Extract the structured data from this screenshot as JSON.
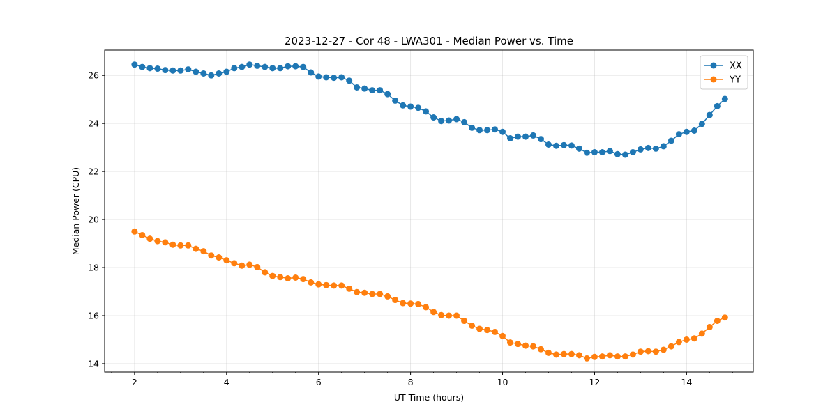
{
  "chart_data": {
    "type": "line",
    "title": "2023-12-27 - Cor 48 - LWA301 - Median Power vs. Time",
    "xlabel": "UT Time (hours)",
    "ylabel": "Median Power (CPU)",
    "xlim": [
      1.35,
      15.45
    ],
    "ylim": [
      13.65,
      27.05
    ],
    "xticks": [
      2,
      4,
      6,
      8,
      10,
      12,
      14
    ],
    "yticks": [
      14,
      16,
      18,
      20,
      22,
      24,
      26
    ],
    "grid": true,
    "legend_position": "top-right",
    "x": [
      2.0,
      2.1667,
      2.3333,
      2.5,
      2.6667,
      2.8333,
      3.0,
      3.1667,
      3.3333,
      3.5,
      3.6667,
      3.8333,
      4.0,
      4.1667,
      4.3333,
      4.5,
      4.6667,
      4.8333,
      5.0,
      5.1667,
      5.3333,
      5.5,
      5.6667,
      5.8333,
      6.0,
      6.1667,
      6.3333,
      6.5,
      6.6667,
      6.8333,
      7.0,
      7.1667,
      7.3333,
      7.5,
      7.6667,
      7.8333,
      8.0,
      8.1667,
      8.3333,
      8.5,
      8.6667,
      8.8333,
      9.0,
      9.1667,
      9.3333,
      9.5,
      9.6667,
      9.8333,
      10.0,
      10.1667,
      10.3333,
      10.5,
      10.6667,
      10.8333,
      11.0,
      11.1667,
      11.3333,
      11.5,
      11.6667,
      11.8333,
      12.0,
      12.1667,
      12.3333,
      12.5,
      12.6667,
      12.8333,
      13.0,
      13.1667,
      13.3333,
      13.5,
      13.6667,
      13.8333,
      14.0,
      14.1667,
      14.3333,
      14.5,
      14.6667,
      14.8333
    ],
    "series": [
      {
        "name": "XX",
        "color": "#1f77b4",
        "values": [
          26.45,
          26.35,
          26.3,
          26.28,
          26.22,
          26.2,
          26.2,
          26.25,
          26.15,
          26.08,
          26.0,
          26.08,
          26.15,
          26.3,
          26.35,
          26.45,
          26.4,
          26.35,
          26.3,
          26.3,
          26.38,
          26.38,
          26.35,
          26.12,
          25.95,
          25.92,
          25.9,
          25.92,
          25.78,
          25.5,
          25.45,
          25.38,
          25.38,
          25.22,
          24.95,
          24.75,
          24.7,
          24.65,
          24.5,
          24.25,
          24.1,
          24.12,
          24.18,
          24.05,
          23.82,
          23.72,
          23.72,
          23.75,
          23.65,
          23.38,
          23.45,
          23.45,
          23.5,
          23.35,
          23.12,
          23.07,
          23.1,
          23.08,
          22.95,
          22.78,
          22.8,
          22.8,
          22.85,
          22.72,
          22.7,
          22.8,
          22.92,
          22.98,
          22.95,
          23.05,
          23.28,
          23.55,
          23.65,
          23.7,
          23.98,
          24.35,
          24.72,
          25.02
        ]
      },
      {
        "name": "YY",
        "color": "#ff7f0e",
        "values": [
          19.5,
          19.35,
          19.2,
          19.1,
          19.05,
          18.95,
          18.92,
          18.92,
          18.78,
          18.68,
          18.5,
          18.42,
          18.3,
          18.18,
          18.08,
          18.12,
          18.02,
          17.8,
          17.65,
          17.6,
          17.55,
          17.58,
          17.52,
          17.38,
          17.3,
          17.27,
          17.25,
          17.25,
          17.12,
          16.98,
          16.95,
          16.9,
          16.9,
          16.8,
          16.65,
          16.52,
          16.5,
          16.48,
          16.35,
          16.15,
          16.02,
          16.0,
          16.0,
          15.78,
          15.58,
          15.45,
          15.4,
          15.32,
          15.15,
          14.88,
          14.82,
          14.75,
          14.72,
          14.6,
          14.45,
          14.38,
          14.4,
          14.4,
          14.35,
          14.22,
          14.28,
          14.3,
          14.35,
          14.3,
          14.3,
          14.38,
          14.5,
          14.52,
          14.5,
          14.58,
          14.72,
          14.9,
          15.0,
          15.05,
          15.25,
          15.52,
          15.78,
          15.92
        ]
      }
    ]
  }
}
